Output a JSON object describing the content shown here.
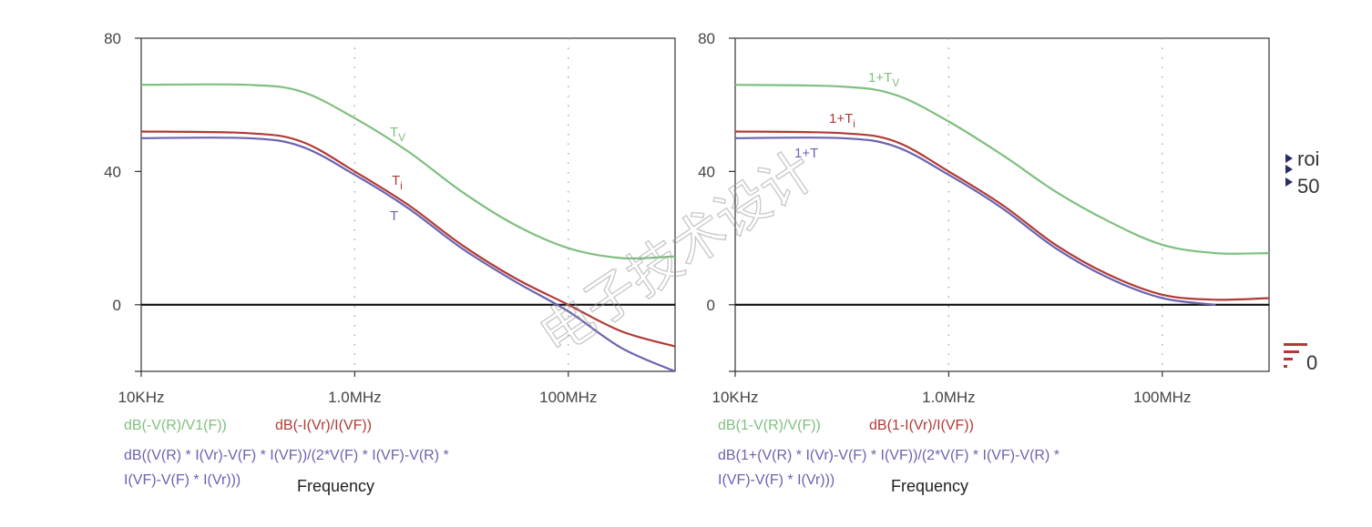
{
  "watermark": "电子技术设计",
  "side_labels": {
    "top": "roi",
    "mid": "50",
    "bottom": "0"
  },
  "colors": {
    "green": "#7fbf7f",
    "red": "#b03a35",
    "blue": "#6a63b0",
    "axis": "#333333"
  },
  "chart_data": [
    {
      "type": "line",
      "x_scale": "log",
      "xlim": [
        "10KHz",
        "1GHz"
      ],
      "ylim": [
        -20,
        80
      ],
      "yticks": [
        "80",
        "40",
        "0"
      ],
      "xticks": [
        "10KHz",
        "1.0MHz",
        "100MHz"
      ],
      "xlabel": "Frequency",
      "x": [
        "10KHz",
        "100KHz",
        "316KHz",
        "1MHz",
        "3.16MHz",
        "10MHz",
        "31.6MHz",
        "100MHz",
        "316MHz",
        "1GHz"
      ],
      "series": [
        {
          "name": "T_v",
          "label_main": "T",
          "label_sub": "V",
          "color": "green",
          "legend": "dB(-V(R)/V1(F))",
          "values": [
            66,
            66,
            64,
            56,
            46,
            34,
            24,
            17,
            14,
            14.5
          ]
        },
        {
          "name": "T_i",
          "label_main": "T",
          "label_sub": "i",
          "color": "red",
          "legend": "dB(-I(Vr)/I(VF))",
          "values": [
            52,
            51.5,
            49,
            40,
            30,
            18,
            8,
            0,
            -8,
            -12.5
          ]
        },
        {
          "name": "T",
          "label_main": "T",
          "label_sub": "",
          "color": "blue",
          "legend": "dB((V(R) * I(Vr)-V(F) * I(VF))/(2*V(F) * I(VF)-V(R) * I(VF)-V(F) * I(Vr)))",
          "legend_lines": [
            "dB((V(R) * I(Vr)-V(F) * I(VF))/(2*V(F) * I(VF)-V(R) *",
            "I(VF)-V(F) * I(Vr)))"
          ],
          "values": [
            50,
            50,
            47.5,
            39,
            29,
            17,
            7,
            -2,
            -13,
            -20
          ]
        }
      ]
    },
    {
      "type": "line",
      "x_scale": "log",
      "xlim": [
        "10KHz",
        "1GHz"
      ],
      "ylim": [
        -20,
        80
      ],
      "yticks": [
        "80",
        "40",
        "0"
      ],
      "xticks": [
        "10KHz",
        "1.0MHz",
        "100MHz"
      ],
      "xlabel": "Frequency",
      "x": [
        "10KHz",
        "100KHz",
        "316KHz",
        "1MHz",
        "3.16MHz",
        "10MHz",
        "31.6MHz",
        "100MHz",
        "316MHz",
        "1GHz"
      ],
      "series": [
        {
          "name": "1+T_v",
          "label_main": "1+T",
          "label_sub": "V",
          "color": "green",
          "legend": "dB(1-V(R)/V(F))",
          "values": [
            66,
            65.5,
            63,
            55,
            45,
            34,
            25,
            18,
            15.5,
            15.5
          ]
        },
        {
          "name": "1+T_i",
          "label_main": "1+T",
          "label_sub": "i",
          "color": "red",
          "legend": "dB(1-I(Vr)/I(VF))",
          "values": [
            52,
            51.5,
            49,
            40,
            30,
            18,
            9,
            3,
            1.5,
            2
          ]
        },
        {
          "name": "1+T",
          "label_main": "1+T",
          "label_sub": "",
          "color": "blue",
          "legend": "dB(1+(V(R) * I(Vr)-V(F) * I(VF))/(2*V(F) * I(VF)-V(R) * I(VF)-V(F) * I(Vr)))",
          "legend_lines": [
            "dB(1+(V(R) * I(Vr)-V(F) * I(VF))/(2*V(F) * I(VF)-V(R) *",
            "I(VF)-V(F) * I(Vr)))"
          ],
          "values": [
            50,
            50,
            47.5,
            39,
            29,
            17,
            8,
            2,
            0,
            null
          ]
        }
      ]
    }
  ]
}
